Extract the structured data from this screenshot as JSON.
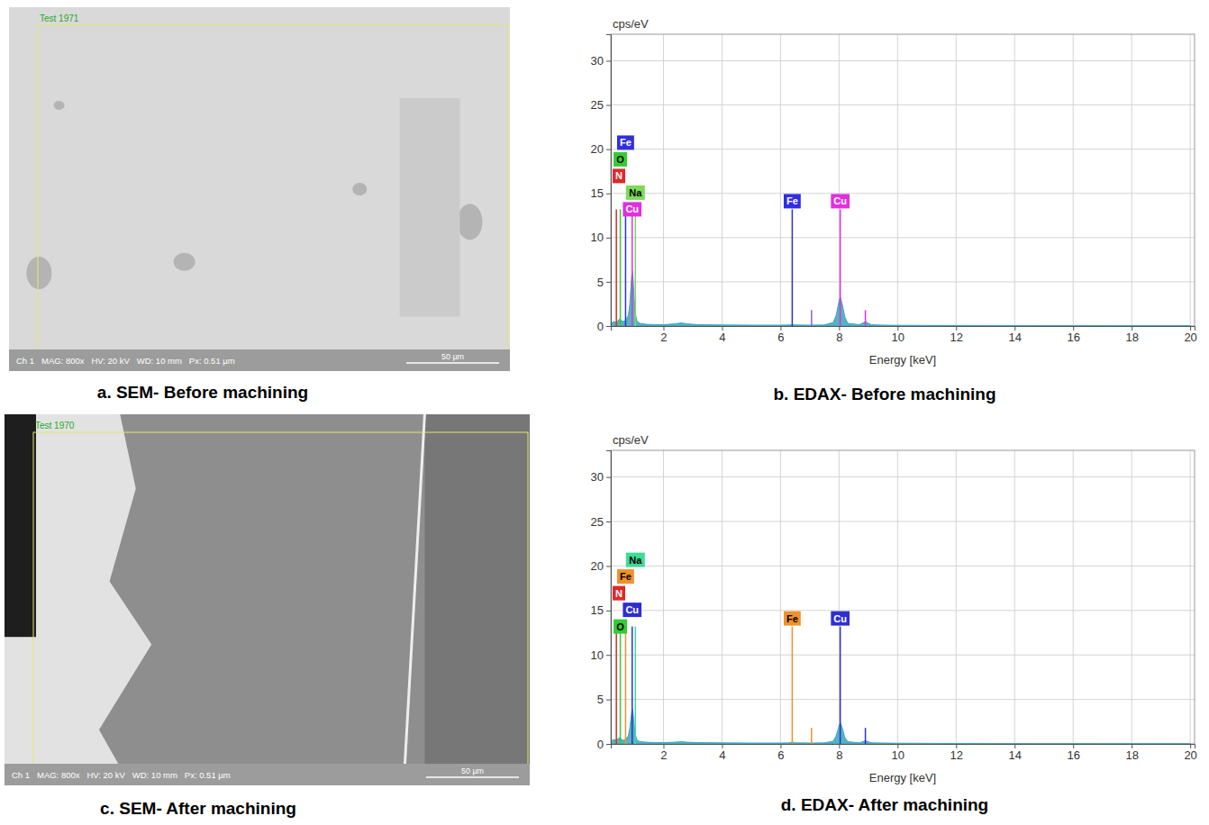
{
  "images": [
    {
      "label": "Test 1971",
      "info": "Ch 1   MAG: 800x   HV: 20 kV   WD: 10 mm   Px: 0.51 µm",
      "scale_bar": "50 µm",
      "caption": "a. SEM- Before machining"
    },
    {
      "label": "Test 1970",
      "info": "Ch 1   MAG: 800x   HV: 20 kV   WD: 10 mm   Px: 0.51 µm",
      "scale_bar": "50 µm",
      "caption": "c. SEM- After machining"
    }
  ],
  "chart_data": [
    {
      "type": "area",
      "title": "b. EDAX- Before machining",
      "x_label": "Energy [keV]",
      "y_label": "cps/eV",
      "x": [
        0.2,
        0.3,
        0.4,
        0.45,
        0.5,
        0.55,
        0.6,
        0.7,
        0.8,
        0.85,
        0.9,
        0.93,
        0.96,
        1.0,
        1.05,
        1.1,
        1.2,
        1.4,
        1.7,
        2.0,
        2.4,
        2.6,
        2.8,
        3.2,
        4,
        5,
        6,
        6.3,
        6.4,
        6.5,
        7,
        7.5,
        7.8,
        7.9,
        8.0,
        8.04,
        8.1,
        8.2,
        8.3,
        8.7,
        8.85,
        8.9,
        8.95,
        9.1,
        9.5,
        10,
        12,
        14,
        16,
        18,
        20
      ],
      "values": [
        0.3,
        0.5,
        0.4,
        0.6,
        0.8,
        0.7,
        0.5,
        0.6,
        1.2,
        2.5,
        5.0,
        6.3,
        5.5,
        3.0,
        1.2,
        0.5,
        0.3,
        0.2,
        0.15,
        0.15,
        0.25,
        0.35,
        0.25,
        0.15,
        0.12,
        0.1,
        0.1,
        0.12,
        0.15,
        0.12,
        0.1,
        0.12,
        0.4,
        1.2,
        2.8,
        3.3,
        2.6,
        1.0,
        0.3,
        0.15,
        0.4,
        0.5,
        0.4,
        0.15,
        0.1,
        0.08,
        0.06,
        0.05,
        0.04,
        0.03,
        0.03
      ],
      "color": "#3aa6b9",
      "xlim": [
        0.2,
        20.15
      ],
      "ylim": [
        0,
        33
      ],
      "xticks": [
        2,
        4,
        6,
        8,
        10,
        12,
        14,
        16,
        18,
        20
      ],
      "yticks": [
        0,
        5,
        10,
        15,
        20,
        25,
        30
      ],
      "grid": true,
      "markers": [
        {
          "label": "Fe",
          "x": 0.705,
          "y": 13.2,
          "color": "#2f2fe0"
        },
        {
          "label": "O",
          "x": 0.525,
          "y": 13.2,
          "color": "#33cc33"
        },
        {
          "label": "N",
          "x": 0.39,
          "y": 13.2,
          "color": "#e02828"
        },
        {
          "label": "Na",
          "x": 1.04,
          "y": 13.2,
          "color": "#7ed957"
        },
        {
          "label": "Cu",
          "x": 0.93,
          "y": 13.2,
          "color": "#e030e0"
        },
        {
          "label": "Fe",
          "x": 6.4,
          "y": 13.2,
          "color": "#2f2fe0"
        },
        {
          "label": "Cu",
          "x": 8.04,
          "y": 13.2,
          "color": "#e030e0"
        },
        {
          "x": 7.06,
          "y": 1.8,
          "color": "#8a5cf0"
        },
        {
          "x": 8.9,
          "y": 1.8,
          "color": "#e030e0"
        }
      ]
    },
    {
      "type": "area",
      "title": "d. EDAX- After machining",
      "x_label": "Energy [keV]",
      "y_label": "cps/eV",
      "x": [
        0.2,
        0.3,
        0.4,
        0.45,
        0.5,
        0.55,
        0.6,
        0.7,
        0.8,
        0.85,
        0.9,
        0.93,
        0.96,
        1.0,
        1.05,
        1.1,
        1.2,
        1.4,
        1.7,
        2.0,
        2.4,
        2.6,
        2.8,
        3.2,
        4,
        5,
        6,
        6.3,
        6.4,
        6.5,
        7,
        7.5,
        7.8,
        7.9,
        8.0,
        8.04,
        8.1,
        8.2,
        8.3,
        8.7,
        8.85,
        8.9,
        8.95,
        9.1,
        9.5,
        10,
        12,
        14,
        16,
        18,
        20
      ],
      "values": [
        0.3,
        0.5,
        0.4,
        0.6,
        0.7,
        0.6,
        0.4,
        0.5,
        0.9,
        1.8,
        3.2,
        4.0,
        3.5,
        2.0,
        0.9,
        0.4,
        0.25,
        0.2,
        0.15,
        0.15,
        0.2,
        0.25,
        0.2,
        0.15,
        0.12,
        0.1,
        0.1,
        0.12,
        0.2,
        0.12,
        0.1,
        0.12,
        0.3,
        0.9,
        2.0,
        2.4,
        1.9,
        0.7,
        0.25,
        0.12,
        0.3,
        0.35,
        0.3,
        0.12,
        0.1,
        0.08,
        0.06,
        0.05,
        0.04,
        0.03,
        0.03
      ],
      "color": "#3aa6b9",
      "xlim": [
        0.2,
        20.15
      ],
      "ylim": [
        0,
        33
      ],
      "xticks": [
        2,
        4,
        6,
        8,
        10,
        12,
        14,
        16,
        18,
        20
      ],
      "yticks": [
        0,
        5,
        10,
        15,
        20,
        25,
        30
      ],
      "grid": true,
      "markers": [
        {
          "label": "Na",
          "x": 1.04,
          "y": 13.2,
          "color": "#3ddc97"
        },
        {
          "label": "Fe",
          "x": 0.705,
          "y": 13.2,
          "color": "#f0922b"
        },
        {
          "label": "N",
          "x": 0.39,
          "y": 13.2,
          "color": "#e02828"
        },
        {
          "label": "Cu",
          "x": 0.93,
          "y": 13.2,
          "color": "#2f2fd0"
        },
        {
          "label": "O",
          "x": 0.525,
          "y": 13.2,
          "color": "#33cc33"
        },
        {
          "label": "Fe",
          "x": 6.4,
          "y": 13.2,
          "color": "#f0922b"
        },
        {
          "label": "Cu",
          "x": 8.04,
          "y": 13.2,
          "color": "#2f2fd0"
        },
        {
          "x": 7.06,
          "y": 1.8,
          "color": "#f0922b"
        },
        {
          "x": 8.9,
          "y": 1.8,
          "color": "#2f2fd0"
        }
      ]
    }
  ]
}
